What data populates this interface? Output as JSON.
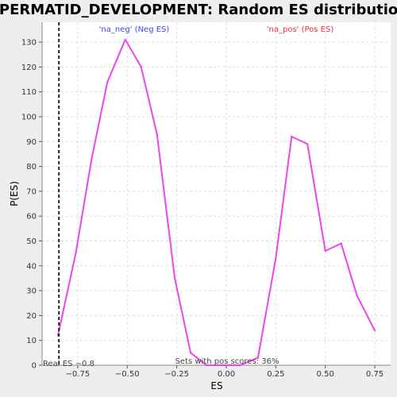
{
  "chart_data": {
    "type": "line",
    "title": "SPERMATID_DEVELOPMENT: Random ES distribution",
    "xlabel": "ES",
    "ylabel": "P(ES)",
    "xlim": [
      -0.93,
      0.83
    ],
    "ylim": [
      0,
      138
    ],
    "x_ticks": [
      -0.75,
      -0.5,
      -0.25,
      0.0,
      0.25,
      0.5,
      0.75
    ],
    "x_tick_labels": [
      "−0.75",
      "−0.50",
      "−0.25",
      "0.00",
      "0.25",
      "0.50",
      "0.75"
    ],
    "y_ticks": [
      0,
      10,
      20,
      30,
      40,
      50,
      60,
      70,
      80,
      90,
      100,
      110,
      120,
      130
    ],
    "grid": true,
    "series": [
      {
        "color": "#ee44ee",
        "x": [
          -0.85,
          -0.76,
          -0.68,
          -0.6,
          -0.51,
          -0.43,
          -0.35,
          -0.26,
          -0.18,
          -0.1,
          -0.02,
          0.07,
          0.16,
          0.25,
          0.33,
          0.41,
          0.5,
          0.58,
          0.66,
          0.75
        ],
        "y": [
          12,
          45,
          83,
          114,
          131,
          120,
          93,
          35,
          5,
          0,
          0,
          0,
          3,
          43,
          92,
          89,
          46,
          49,
          28,
          14
        ]
      }
    ],
    "real_es": -0.845,
    "annotations": {
      "neg": {
        "text": "'na_neg' (Neg ES)",
        "color": "#4444ee"
      },
      "pos": {
        "text": "'na_pos' (Pos ES)",
        "color": "#ee3333"
      },
      "real_es_label": "Real ES −0.8",
      "footer": "Sets with pos scores: 36%"
    }
  }
}
